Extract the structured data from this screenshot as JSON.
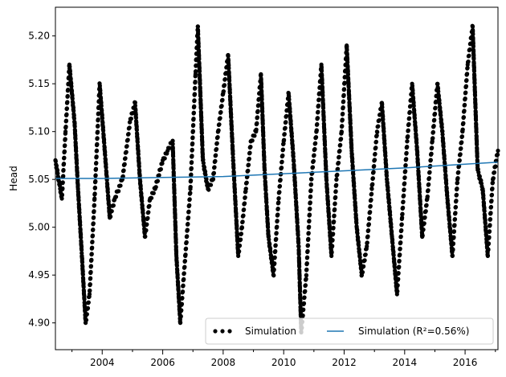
{
  "chart_data": {
    "type": "line",
    "title": "",
    "xlabel": "",
    "ylabel": "Head",
    "xlim": [
      "2002-06-15",
      "2017-02-01"
    ],
    "ylim": [
      4.872,
      5.23
    ],
    "x_ticks": [
      "2004",
      "2006",
      "2008",
      "2010",
      "2012",
      "2014",
      "2016"
    ],
    "y_ticks": [
      "4.90",
      "4.95",
      "5.00",
      "5.05",
      "5.10",
      "5.15",
      "5.20"
    ],
    "grid": false,
    "legend": {
      "placement": "lower-right",
      "ncol": 2,
      "entries": [
        "Simulation",
        "Simulation (R²=0.56%)"
      ]
    },
    "series": [
      {
        "name": "Simulation",
        "style": "points",
        "color": "#000000",
        "x": [
          "2002-06-15",
          "2002-09-01",
          "2002-10-15",
          "2002-12-01",
          "2003-02-01",
          "2003-03-15",
          "2003-05-01",
          "2003-06-15",
          "2003-08-01",
          "2003-10-01",
          "2003-12-01",
          "2004-02-01",
          "2004-04-01",
          "2004-06-01",
          "2004-09-01",
          "2004-12-01",
          "2005-02-01",
          "2005-04-01",
          "2005-06-01",
          "2005-08-01",
          "2005-10-01",
          "2006-01-01",
          "2006-03-01",
          "2006-05-01",
          "2006-06-15",
          "2006-08-01",
          "2006-10-01",
          "2006-12-01",
          "2007-02-01",
          "2007-03-01",
          "2007-05-01",
          "2007-07-01",
          "2007-09-01",
          "2007-11-01",
          "2008-01-01",
          "2008-03-01",
          "2008-05-01",
          "2008-07-01",
          "2008-08-15",
          "2008-10-01",
          "2008-12-01",
          "2009-02-01",
          "2009-04-01",
          "2009-05-15",
          "2009-07-01",
          "2009-09-01",
          "2009-11-01",
          "2010-01-01",
          "2010-03-01",
          "2010-05-01",
          "2010-07-01",
          "2010-08-01",
          "2010-10-01",
          "2010-12-01",
          "2011-02-01",
          "2011-04-01",
          "2011-06-01",
          "2011-08-01",
          "2011-10-01",
          "2011-12-01",
          "2012-02-01",
          "2012-04-01",
          "2012-06-01",
          "2012-08-01",
          "2012-10-01",
          "2012-12-01",
          "2013-02-01",
          "2013-04-01",
          "2013-06-01",
          "2013-08-01",
          "2013-10-01",
          "2013-12-01",
          "2014-02-01",
          "2014-04-01",
          "2014-06-01",
          "2014-08-01",
          "2014-10-01",
          "2014-12-01",
          "2015-02-01",
          "2015-04-01",
          "2015-06-01",
          "2015-08-01",
          "2015-10-01",
          "2015-12-01",
          "2016-02-01",
          "2016-04-01",
          "2016-06-01",
          "2016-08-01",
          "2016-10-01",
          "2016-12-01",
          "2017-02-01"
        ],
        "y": [
          5.07,
          5.03,
          5.1,
          5.17,
          5.11,
          5.04,
          4.97,
          4.9,
          4.93,
          5.03,
          5.15,
          5.08,
          5.01,
          5.03,
          5.05,
          5.11,
          5.13,
          5.05,
          4.99,
          5.03,
          5.04,
          5.07,
          5.08,
          5.09,
          4.97,
          4.9,
          4.97,
          5.04,
          5.16,
          5.21,
          5.07,
          5.04,
          5.05,
          5.1,
          5.14,
          5.18,
          5.07,
          4.97,
          5.0,
          5.04,
          5.09,
          5.1,
          5.16,
          5.06,
          4.99,
          4.95,
          5.03,
          5.09,
          5.14,
          5.07,
          4.98,
          4.89,
          4.95,
          5.05,
          5.1,
          5.17,
          5.05,
          4.97,
          5.05,
          5.1,
          5.19,
          5.08,
          5.0,
          4.95,
          4.98,
          5.04,
          5.1,
          5.13,
          5.05,
          4.99,
          4.93,
          5.01,
          5.09,
          5.15,
          5.08,
          4.99,
          5.03,
          5.09,
          5.15,
          5.1,
          5.03,
          4.97,
          5.05,
          5.1,
          5.17,
          5.21,
          5.06,
          5.04,
          4.97,
          5.05,
          5.08
        ]
      },
      {
        "name": "Simulation (R²=0.56%)",
        "style": "line",
        "color": "#1f77b4",
        "x": [
          "2002-06-15",
          "2004-01-01",
          "2006-01-01",
          "2008-01-01",
          "2010-01-01",
          "2012-01-01",
          "2014-01-01",
          "2016-01-01",
          "2017-02-01"
        ],
        "y": [
          5.051,
          5.051,
          5.052,
          5.053,
          5.056,
          5.059,
          5.062,
          5.066,
          5.068
        ]
      }
    ]
  }
}
